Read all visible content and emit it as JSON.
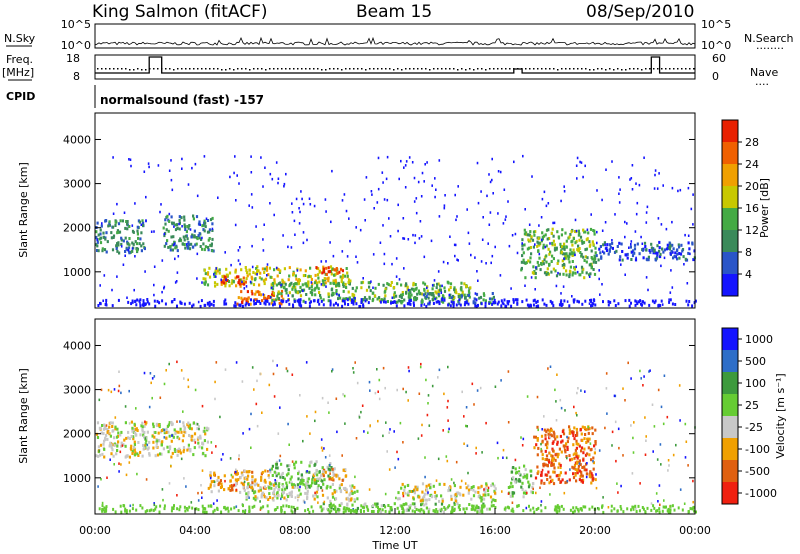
{
  "header": {
    "station": "King Salmon (fitACF)",
    "beam": "Beam 15",
    "date": "08/Sep/2010"
  },
  "side_labels": {
    "nsky": "N.Sky",
    "nsearch": "N.Search",
    "freq": "Freq.",
    "freq_unit": "[MHz]",
    "nave": "Nave",
    "cpid": "CPID",
    "dots_long": "........",
    "dots_short": "...."
  },
  "cpid_text": "normalsound (fast) -157",
  "colors": {
    "power_scale": [
      "#1414ff",
      "#2a55c8",
      "#3a8a5a",
      "#44aa44",
      "#c8c800",
      "#f0a000",
      "#f06000",
      "#e82000"
    ],
    "velocity_scale": [
      "#1414ff",
      "#2e6ec8",
      "#3d9a3d",
      "#66cc33",
      "#c8c8c8",
      "#f0a000",
      "#e06010",
      "#f02010"
    ]
  },
  "chart_data": [
    {
      "type": "line",
      "name_panel": "noise",
      "left_ticks": [
        "10^5",
        "10^0"
      ],
      "right_ticks": [
        "10^5",
        "10^0"
      ]
    },
    {
      "type": "line",
      "name_panel": "frequency-nave",
      "left_ticks": [
        "18",
        "8"
      ],
      "right_ticks": [
        "60",
        "0"
      ],
      "freq_steps": [
        {
          "start": "00:00",
          "end": "02:10",
          "level": "low"
        },
        {
          "start": "02:10",
          "end": "02:40",
          "level": "high"
        },
        {
          "start": "02:40",
          "end": "16:45",
          "level": "low"
        },
        {
          "start": "16:45",
          "end": "17:05",
          "level": "mid"
        },
        {
          "start": "17:05",
          "end": "22:15",
          "level": "low"
        },
        {
          "start": "22:15",
          "end": "22:35",
          "level": "high"
        },
        {
          "start": "22:35",
          "end": "24:00",
          "level": "low"
        }
      ]
    },
    {
      "type": "heatmap",
      "name_panel": "power",
      "ylabel": "Slant Range [km]",
      "yticks": [
        1000,
        2000,
        3000,
        4000
      ],
      "ylim": [
        180,
        4600
      ],
      "colorbar_label": "Power [dB]",
      "colorbar_ticks": [
        "28",
        "24",
        "20",
        "16",
        "12",
        "8",
        "4"
      ],
      "echo_regions": [
        {
          "t0": 0.0,
          "t1": 2.0,
          "r0": 1450,
          "r1": 2200,
          "level": 2
        },
        {
          "t0": 2.7,
          "t1": 4.7,
          "r0": 1500,
          "r1": 2300,
          "level": 2
        },
        {
          "t0": 4.3,
          "t1": 10.2,
          "r0": 700,
          "r1": 1150,
          "level": 4
        },
        {
          "t0": 5.0,
          "t1": 6.0,
          "r0": 750,
          "r1": 950,
          "level": 7
        },
        {
          "t0": 8.7,
          "t1": 9.9,
          "r0": 950,
          "r1": 1130,
          "level": 7
        },
        {
          "t0": 5.5,
          "t1": 7.5,
          "r0": 300,
          "r1": 600,
          "level": 6
        },
        {
          "t0": 7.0,
          "t1": 15.0,
          "r0": 350,
          "r1": 800,
          "level": 3
        },
        {
          "t0": 12.0,
          "t1": 16.0,
          "r0": 300,
          "r1": 550,
          "level": 2
        },
        {
          "t0": 17.0,
          "t1": 20.0,
          "r0": 900,
          "r1": 2000,
          "level": 3
        },
        {
          "t0": 20.0,
          "t1": 24.0,
          "r0": 1300,
          "r1": 1700,
          "level": 1
        }
      ]
    },
    {
      "type": "heatmap",
      "name_panel": "velocity",
      "ylabel": "Slant Range [km]",
      "yticks": [
        1000,
        2000,
        3000,
        4000
      ],
      "ylim": [
        180,
        4600
      ],
      "colorbar_label": "Velocity [m s⁻¹]",
      "colorbar_ticks": [
        "1000",
        "500",
        "100",
        "25",
        "-25",
        "-100",
        "-500",
        "-1000"
      ],
      "echo_regions": [
        {
          "t0": 0.0,
          "t1": 4.5,
          "r0": 1500,
          "r1": 2300,
          "level": 4
        },
        {
          "t0": 4.5,
          "t1": 7.0,
          "r0": 700,
          "r1": 1200,
          "level": 5
        },
        {
          "t0": 7.0,
          "t1": 9.5,
          "r0": 800,
          "r1": 1400,
          "level": 3
        },
        {
          "t0": 8.7,
          "t1": 10.0,
          "r0": 950,
          "r1": 1250,
          "level": 5
        },
        {
          "t0": 6.0,
          "t1": 10.5,
          "r0": 500,
          "r1": 900,
          "level": 4
        },
        {
          "t0": 9.0,
          "t1": 16.0,
          "r0": 250,
          "r1": 450,
          "level": 3
        },
        {
          "t0": 12.0,
          "t1": 16.0,
          "r0": 500,
          "r1": 900,
          "level": 4
        },
        {
          "t0": 16.5,
          "t1": 17.5,
          "r0": 600,
          "r1": 1300,
          "level": 3
        },
        {
          "t0": 17.5,
          "t1": 20.0,
          "r0": 900,
          "r1": 2200,
          "level": 6
        }
      ],
      "xlabel": "Time UT",
      "xticks": [
        "00:00",
        "04:00",
        "08:00",
        "12:00",
        "16:00",
        "20:00",
        "00:00"
      ]
    }
  ]
}
